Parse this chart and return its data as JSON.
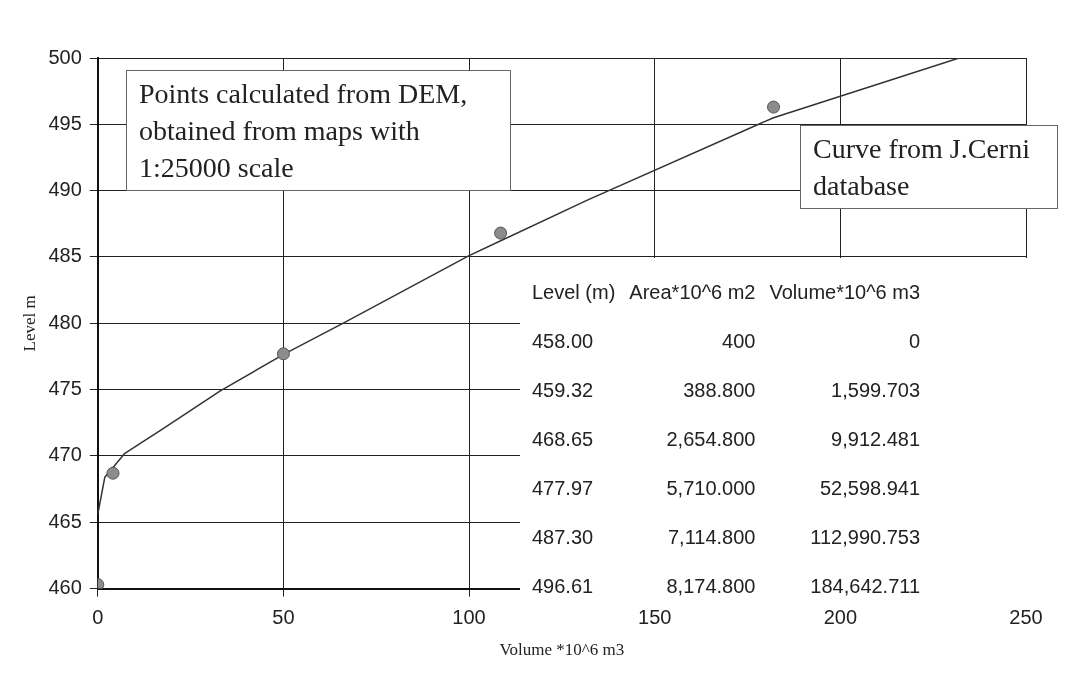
{
  "chart_data": {
    "type": "scatter",
    "xlabel": "Volume *10^6 m3",
    "ylabel": "Level m",
    "xlim": [
      0,
      250
    ],
    "xticks": [
      0,
      50,
      100,
      150,
      200,
      250
    ],
    "ylim": [
      460,
      500
    ],
    "yticks": [
      460,
      465,
      470,
      475,
      480,
      485,
      490,
      495,
      500
    ],
    "grid": true,
    "series": [
      {
        "type": "line",
        "color": "#333333",
        "marker": "none",
        "x": [
          0,
          1.9,
          7.3,
          17.3,
          33,
          50.3,
          66,
          100,
          132,
          182,
          232
        ],
        "values": [
          465.6,
          468.4,
          470.2,
          472,
          474.9,
          477.7,
          480,
          485.1,
          489.3,
          495.5,
          500
        ]
      },
      {
        "color": "#8c8c8c",
        "marker": "circle",
        "x": [
          0,
          4.1,
          50,
          108.5,
          182
        ],
        "values": [
          460.3,
          468.7,
          477.7,
          486.8,
          496.3
        ]
      }
    ],
    "annotations": [
      "Points calculated from DEM, obtained from maps with 1:25000 scale",
      "Curve from J.Cerni database",
      "Level (m)",
      "Area*10^6 m2",
      "Volume*10^6 m3",
      "458.00",
      "400",
      "0",
      "459.32",
      "388.800",
      "1,599.703",
      "468.65",
      "2,654.800",
      "9,912.481",
      "477.97",
      "5,710.000",
      "52,598.941",
      "487.30",
      "7,114.800",
      "112,990.753",
      "496.61",
      "8,174.800",
      "184,642.711"
    ]
  }
}
